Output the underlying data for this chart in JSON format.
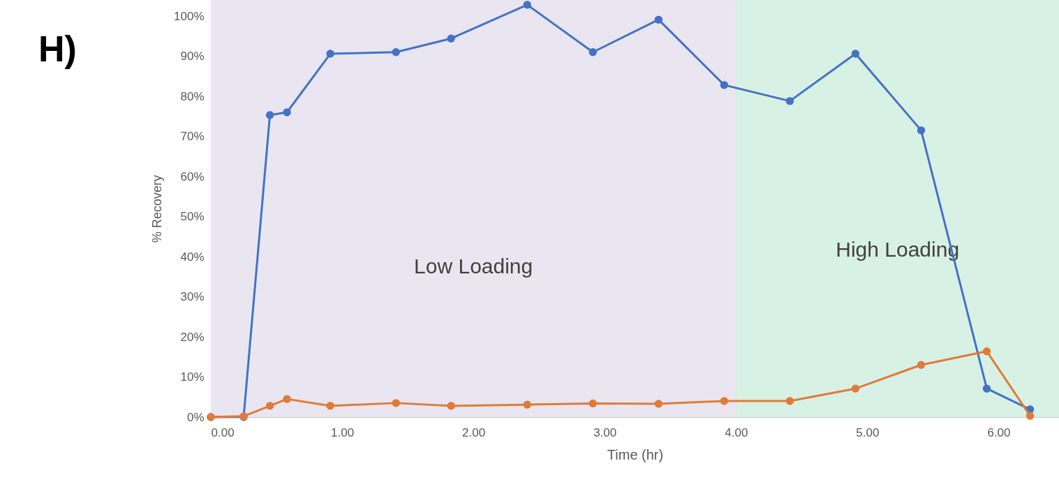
{
  "chart_data": {
    "type": "line",
    "xlabel": "Time (hr)",
    "ylabel": "% Recovery",
    "annotations": [
      "H)"
    ],
    "xlim": [
      0,
      6.46
    ],
    "xticks": [
      {
        "value": 0,
        "label": "0.00"
      },
      {
        "value": 1,
        "label": "1.00"
      },
      {
        "value": 2,
        "label": "2.00"
      },
      {
        "value": 3,
        "label": "3.00"
      },
      {
        "value": 4,
        "label": "4.00"
      },
      {
        "value": 5,
        "label": "5.00"
      },
      {
        "value": 6,
        "label": "6.00"
      }
    ],
    "ylim": [
      0,
      104
    ],
    "yticks": [
      {
        "value": 0,
        "label": "0%"
      },
      {
        "value": 10,
        "label": "10%"
      },
      {
        "value": 20,
        "label": "20%"
      },
      {
        "value": 30,
        "label": "30%"
      },
      {
        "value": 40,
        "label": "40%"
      },
      {
        "value": 50,
        "label": "50%"
      },
      {
        "value": 60,
        "label": "60%"
      },
      {
        "value": 70,
        "label": "70%"
      },
      {
        "value": 80,
        "label": "80%"
      },
      {
        "value": 90,
        "label": "90%"
      },
      {
        "value": 100,
        "label": "100%"
      }
    ],
    "grid": true,
    "marker": "circle",
    "line_style": "solid",
    "bands": [
      {
        "axis": "x",
        "from": 0,
        "to": 4,
        "label": "Low Loading",
        "color": "#e9e6f1"
      },
      {
        "axis": "x",
        "from": 4,
        "to": 6.46,
        "label": "High Loading",
        "color": "#d8f1e5"
      }
    ],
    "series": [
      {
        "color": "#4472c4",
        "x": [
          0,
          0.25,
          0.45,
          0.58,
          0.91,
          1.41,
          1.83,
          2.41,
          2.91,
          3.41,
          3.91,
          4.41,
          4.91,
          5.41,
          5.91,
          6.24
        ],
        "values": [
          0,
          0,
          75.3,
          76,
          90.6,
          91,
          94.4,
          102.8,
          91,
          99.1,
          82.8,
          78.8,
          90.6,
          71.5,
          7.1,
          1.9
        ]
      },
      {
        "color": "#e07b39",
        "x": [
          0,
          0.25,
          0.45,
          0.58,
          0.91,
          1.41,
          1.83,
          2.41,
          2.91,
          3.41,
          3.91,
          4.41,
          4.91,
          5.41,
          5.91,
          6.24
        ],
        "values": [
          0,
          0.2,
          2.8,
          4.5,
          2.8,
          3.5,
          2.8,
          3.1,
          3.4,
          3.3,
          4.0,
          4.0,
          7.1,
          13,
          16.4,
          0.3
        ]
      }
    ]
  }
}
